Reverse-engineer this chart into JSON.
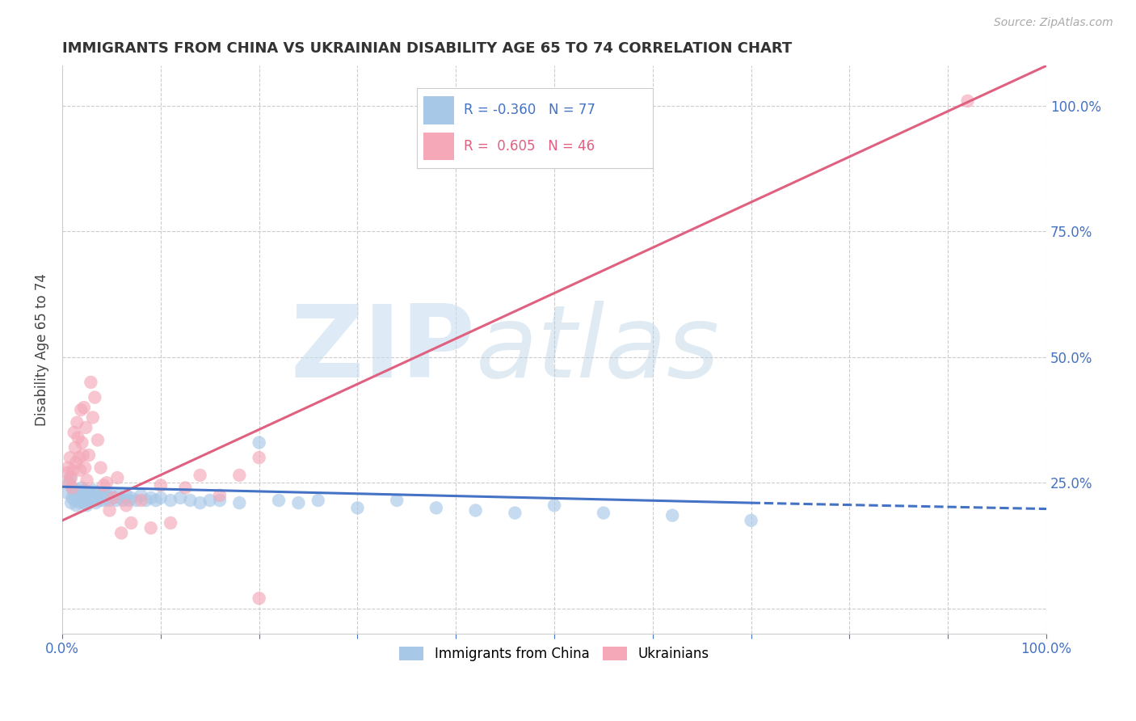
{
  "title": "IMMIGRANTS FROM CHINA VS UKRAINIAN DISABILITY AGE 65 TO 74 CORRELATION CHART",
  "source": "Source: ZipAtlas.com",
  "ylabel": "Disability Age 65 to 74",
  "watermark": "ZIPatlas",
  "legend_r_china": "-0.360",
  "legend_n_china": "77",
  "legend_r_ukraine": "0.605",
  "legend_n_ukraine": "46",
  "china_color": "#a8c8e8",
  "ukraine_color": "#f4a8b8",
  "china_line_color": "#4472c4",
  "ukraine_line_color": "#e06080",
  "xlim": [
    0.0,
    1.0
  ],
  "ylim": [
    -0.05,
    1.08
  ],
  "yticks": [
    0.0,
    0.25,
    0.5,
    0.75,
    1.0
  ],
  "ytick_labels": [
    "",
    "25.0%",
    "50.0%",
    "75.0%",
    "100.0%"
  ],
  "china_scatter_x": [
    0.005,
    0.007,
    0.008,
    0.009,
    0.01,
    0.01,
    0.012,
    0.013,
    0.014,
    0.015,
    0.016,
    0.017,
    0.018,
    0.018,
    0.019,
    0.02,
    0.02,
    0.021,
    0.022,
    0.022,
    0.023,
    0.024,
    0.025,
    0.025,
    0.026,
    0.027,
    0.028,
    0.03,
    0.031,
    0.032,
    0.033,
    0.034,
    0.035,
    0.036,
    0.038,
    0.039,
    0.04,
    0.042,
    0.043,
    0.045,
    0.046,
    0.048,
    0.05,
    0.052,
    0.055,
    0.057,
    0.06,
    0.062,
    0.065,
    0.068,
    0.07,
    0.075,
    0.08,
    0.085,
    0.09,
    0.095,
    0.1,
    0.11,
    0.12,
    0.13,
    0.14,
    0.15,
    0.16,
    0.18,
    0.2,
    0.22,
    0.24,
    0.26,
    0.3,
    0.34,
    0.38,
    0.42,
    0.46,
    0.5,
    0.55,
    0.62,
    0.7
  ],
  "china_scatter_y": [
    0.23,
    0.25,
    0.26,
    0.21,
    0.24,
    0.22,
    0.23,
    0.215,
    0.205,
    0.225,
    0.235,
    0.22,
    0.21,
    0.23,
    0.215,
    0.24,
    0.22,
    0.225,
    0.21,
    0.23,
    0.235,
    0.215,
    0.225,
    0.205,
    0.22,
    0.23,
    0.215,
    0.225,
    0.22,
    0.235,
    0.215,
    0.21,
    0.225,
    0.23,
    0.22,
    0.215,
    0.225,
    0.23,
    0.215,
    0.22,
    0.225,
    0.215,
    0.225,
    0.22,
    0.215,
    0.225,
    0.22,
    0.215,
    0.225,
    0.215,
    0.22,
    0.215,
    0.225,
    0.215,
    0.22,
    0.215,
    0.22,
    0.215,
    0.22,
    0.215,
    0.21,
    0.215,
    0.215,
    0.21,
    0.33,
    0.215,
    0.21,
    0.215,
    0.2,
    0.215,
    0.2,
    0.195,
    0.19,
    0.205,
    0.19,
    0.185,
    0.175
  ],
  "ukraine_scatter_x": [
    0.005,
    0.006,
    0.007,
    0.008,
    0.009,
    0.01,
    0.011,
    0.012,
    0.013,
    0.014,
    0.015,
    0.016,
    0.017,
    0.018,
    0.019,
    0.02,
    0.021,
    0.022,
    0.023,
    0.024,
    0.025,
    0.027,
    0.029,
    0.031,
    0.033,
    0.036,
    0.039,
    0.042,
    0.045,
    0.048,
    0.052,
    0.056,
    0.06,
    0.065,
    0.07,
    0.08,
    0.09,
    0.1,
    0.11,
    0.125,
    0.14,
    0.16,
    0.18,
    0.2,
    0.92,
    0.2
  ],
  "ukraine_scatter_y": [
    0.27,
    0.28,
    0.25,
    0.3,
    0.26,
    0.24,
    0.275,
    0.35,
    0.32,
    0.29,
    0.37,
    0.34,
    0.3,
    0.275,
    0.395,
    0.33,
    0.305,
    0.4,
    0.28,
    0.36,
    0.255,
    0.305,
    0.45,
    0.38,
    0.42,
    0.335,
    0.28,
    0.245,
    0.25,
    0.195,
    0.22,
    0.26,
    0.15,
    0.205,
    0.17,
    0.215,
    0.16,
    0.245,
    0.17,
    0.24,
    0.265,
    0.225,
    0.265,
    0.3,
    1.01,
    0.02
  ],
  "china_trend_x": [
    0.0,
    0.7,
    1.0
  ],
  "china_trend_y": [
    0.242,
    0.21,
    0.198
  ],
  "china_trend_solid_end": 0.7,
  "ukraine_trend_x": [
    0.0,
    1.0
  ],
  "ukraine_trend_y": [
    0.175,
    1.08
  ],
  "background_color": "#ffffff",
  "grid_color": "#cccccc",
  "title_color": "#333333",
  "axis_label_color": "#4472c4"
}
